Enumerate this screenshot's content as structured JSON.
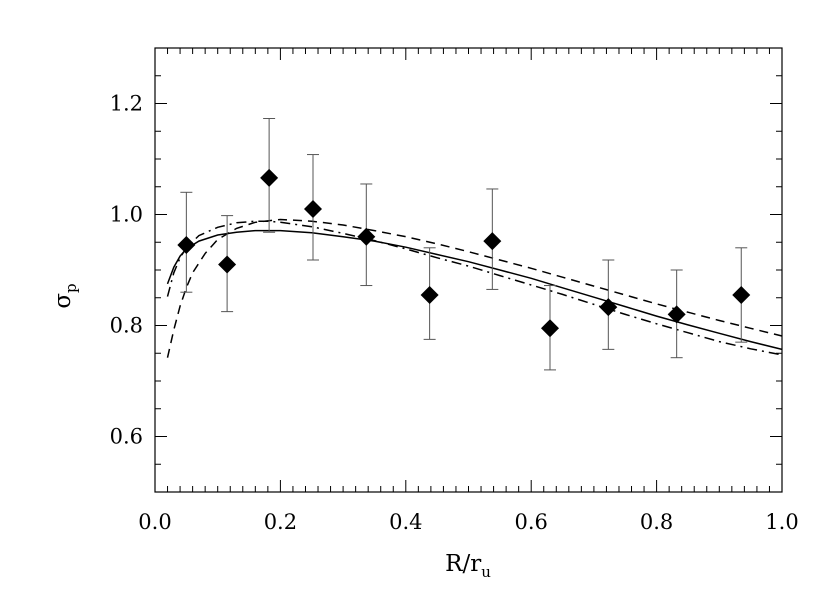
{
  "chart_data": {
    "type": "scatter",
    "title": "",
    "xlabel": {
      "main": "R/r",
      "sub": "u"
    },
    "ylabel": {
      "main": "σ",
      "sub": "p"
    },
    "xlim": [
      0.0,
      1.0
    ],
    "ylim": [
      0.5,
      1.3
    ],
    "xticks": [
      0.0,
      0.2,
      0.4,
      0.6,
      0.8,
      1.0
    ],
    "xtick_labels": [
      "0.0",
      "0.2",
      "0.4",
      "0.6",
      "0.8",
      "1.0"
    ],
    "yticks": [
      0.6,
      0.8,
      1.0,
      1.2
    ],
    "ytick_labels": [
      "0.6",
      "0.8",
      "1.0",
      "1.2"
    ],
    "grid": false,
    "series": [
      {
        "kind": "points_with_errorbars",
        "marker": "diamond",
        "x": [
          0.05,
          0.115,
          0.182,
          0.252,
          0.337,
          0.438,
          0.538,
          0.63,
          0.723,
          0.832,
          0.935
        ],
        "y": [
          0.945,
          0.91,
          1.066,
          1.01,
          0.96,
          0.855,
          0.952,
          0.795,
          0.833,
          0.82,
          0.855
        ],
        "y_low": [
          0.86,
          0.825,
          0.968,
          0.918,
          0.872,
          0.775,
          0.865,
          0.72,
          0.757,
          0.742,
          0.77
        ],
        "y_high": [
          1.04,
          0.998,
          1.173,
          1.108,
          1.055,
          0.94,
          1.046,
          0.872,
          0.918,
          0.9,
          0.94
        ]
      },
      {
        "kind": "line",
        "style": "solid",
        "x": [
          0.02,
          0.03,
          0.04,
          0.05,
          0.07,
          0.1,
          0.13,
          0.16,
          0.2,
          0.25,
          0.3,
          0.35,
          0.4,
          0.45,
          0.5,
          0.55,
          0.6,
          0.65,
          0.7,
          0.75,
          0.8,
          0.85,
          0.9,
          0.95,
          1.0
        ],
        "y": [
          0.875,
          0.905,
          0.925,
          0.938,
          0.952,
          0.963,
          0.968,
          0.971,
          0.971,
          0.967,
          0.96,
          0.952,
          0.941,
          0.928,
          0.915,
          0.9,
          0.885,
          0.868,
          0.851,
          0.834,
          0.817,
          0.801,
          0.786,
          0.771,
          0.757
        ]
      },
      {
        "kind": "line",
        "style": "dashed",
        "x": [
          0.02,
          0.03,
          0.04,
          0.05,
          0.06,
          0.08,
          0.1,
          0.13,
          0.16,
          0.2,
          0.25,
          0.3,
          0.35,
          0.4,
          0.45,
          0.5,
          0.55,
          0.6,
          0.65,
          0.7,
          0.75,
          0.8,
          0.85,
          0.9,
          0.95,
          1.0
        ],
        "y": [
          0.742,
          0.792,
          0.835,
          0.868,
          0.895,
          0.93,
          0.955,
          0.975,
          0.986,
          0.991,
          0.988,
          0.981,
          0.971,
          0.96,
          0.947,
          0.933,
          0.918,
          0.903,
          0.887,
          0.871,
          0.855,
          0.839,
          0.824,
          0.809,
          0.795,
          0.781
        ]
      },
      {
        "kind": "line",
        "style": "dashdot",
        "x": [
          0.02,
          0.03,
          0.04,
          0.05,
          0.07,
          0.1,
          0.13,
          0.16,
          0.18,
          0.2,
          0.25,
          0.3,
          0.35,
          0.4,
          0.45,
          0.5,
          0.55,
          0.6,
          0.65,
          0.7,
          0.75,
          0.8,
          0.85,
          0.9,
          0.95,
          1.0
        ],
        "y": [
          0.852,
          0.895,
          0.922,
          0.94,
          0.962,
          0.977,
          0.985,
          0.988,
          0.988,
          0.986,
          0.978,
          0.966,
          0.953,
          0.938,
          0.922,
          0.907,
          0.89,
          0.873,
          0.856,
          0.838,
          0.82,
          0.803,
          0.787,
          0.771,
          0.758,
          0.747
        ]
      }
    ]
  }
}
